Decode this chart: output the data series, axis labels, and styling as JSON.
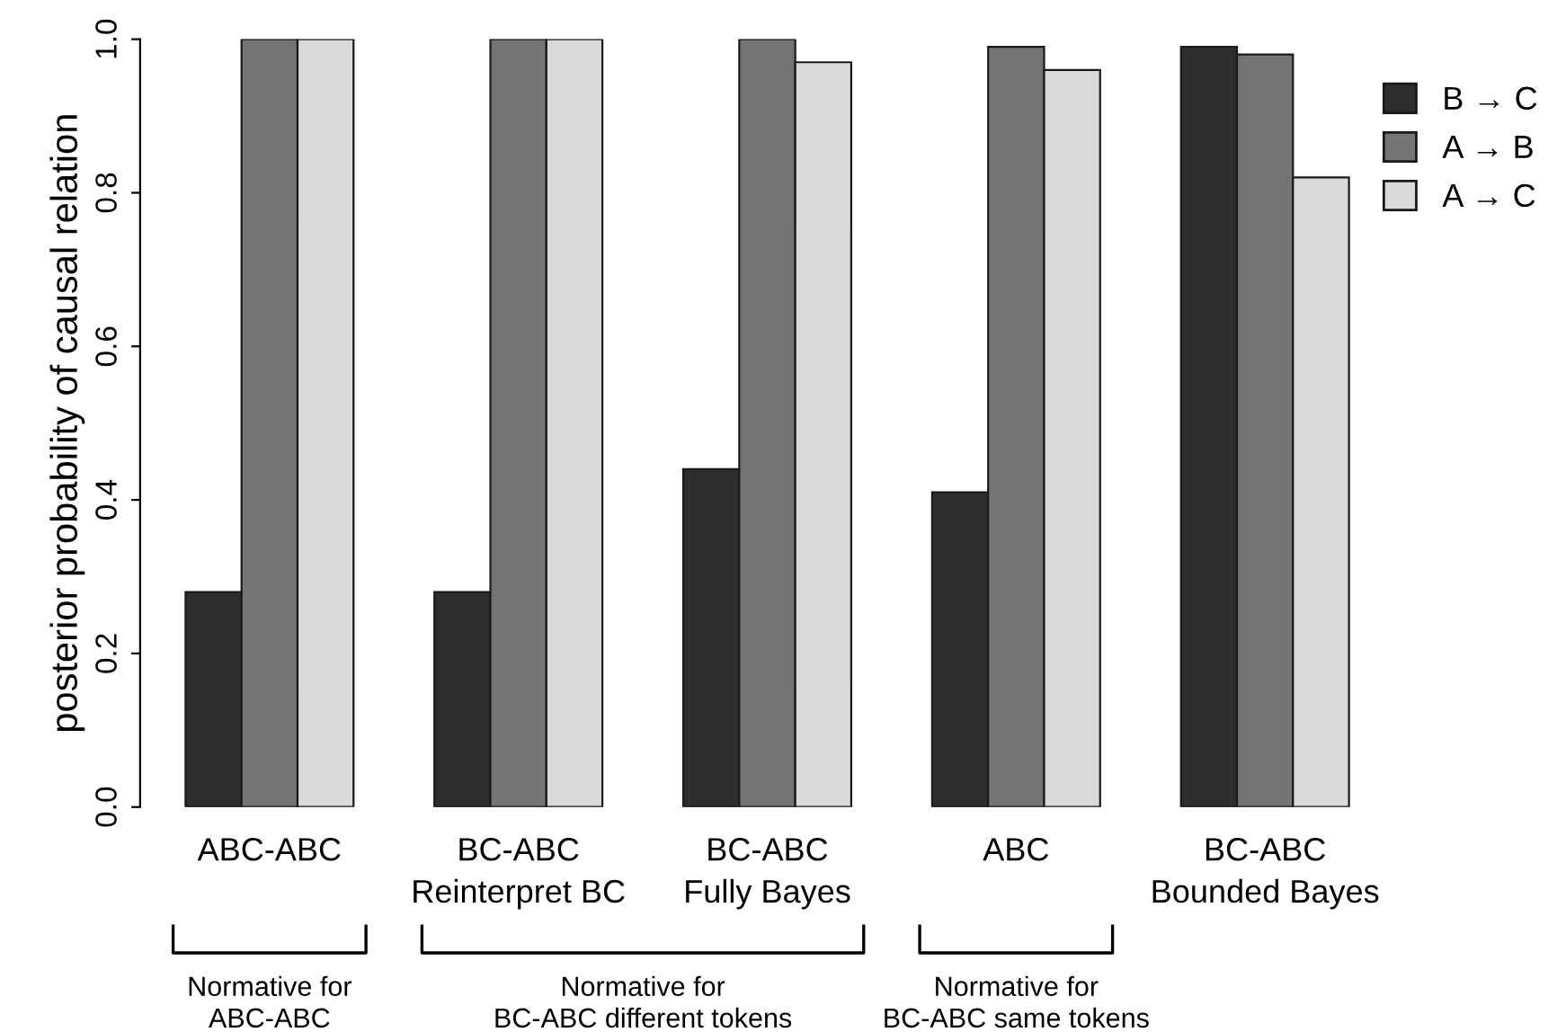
{
  "chart_data": {
    "type": "bar",
    "ylabel": "posterior probability of causal relation",
    "categories": [
      "ABC-ABC",
      "BC-ABC\nReinterpret BC",
      "BC-ABC\nFully Bayes",
      "ABC",
      "BC-ABC\nBounded Bayes"
    ],
    "series": [
      {
        "name": "B → C",
        "color": "#2e2e2e",
        "values": [
          0.28,
          0.28,
          0.44,
          0.41,
          0.99
        ]
      },
      {
        "name": "A → B",
        "color": "#747474",
        "values": [
          1.0,
          1.0,
          1.0,
          0.99,
          0.98
        ]
      },
      {
        "name": "A → C",
        "color": "#d9d9d9",
        "values": [
          1.0,
          1.0,
          0.97,
          0.96,
          0.82
        ]
      }
    ],
    "ylim": [
      0,
      1
    ],
    "yticks": [
      {
        "value": 0,
        "label": "0.0"
      },
      {
        "value": 0.2,
        "label": "0.2"
      },
      {
        "value": 0.4,
        "label": "0.4"
      },
      {
        "value": 0.6,
        "label": "0.6"
      },
      {
        "value": 0.8,
        "label": "0.8"
      },
      {
        "value": 1,
        "label": "1.0"
      }
    ],
    "grid": false,
    "legend": "top right",
    "annotations": [
      "Normative for\nABC-ABC",
      "Normative for\nBC-ABC different tokens",
      "Normative for\nBC-ABC same tokens"
    ]
  }
}
